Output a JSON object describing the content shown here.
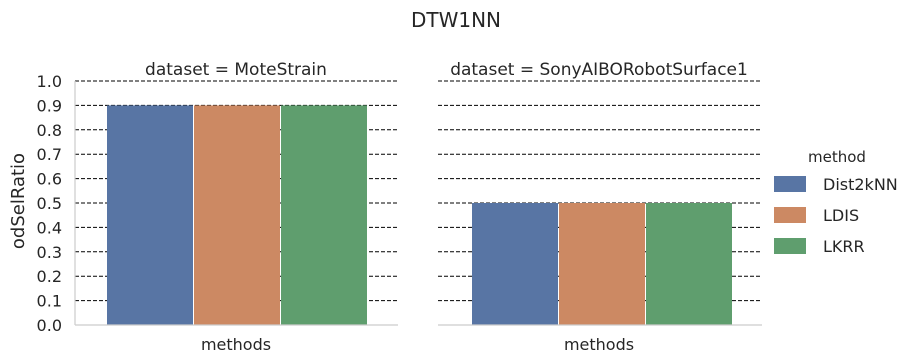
{
  "chart_data": {
    "type": "bar",
    "title": "DTW1NN",
    "ylabel": "odSelRatio",
    "ylim": [
      0,
      1.0
    ],
    "yticks": [
      "0.0",
      "0.1",
      "0.2",
      "0.3",
      "0.4",
      "0.5",
      "0.6",
      "0.7",
      "0.8",
      "0.9",
      "1.0"
    ],
    "grid": "horizontal dashed",
    "legend": {
      "title": "method",
      "placement": "right",
      "entries": [
        "Dist2kNN",
        "LDIS",
        "LKRR"
      ]
    },
    "colors": [
      "#5875a4",
      "#cc8963",
      "#5f9e6e"
    ],
    "categories": [
      "methods"
    ],
    "panels": [
      {
        "title": "dataset = MoteStrain",
        "xlabel": "methods",
        "series": [
          {
            "name": "Dist2kNN",
            "values": [
              0.9
            ]
          },
          {
            "name": "LDIS",
            "values": [
              0.9
            ]
          },
          {
            "name": "LKRR",
            "values": [
              0.9
            ]
          }
        ]
      },
      {
        "title": "dataset = SonyAIBORobotSurface1",
        "xlabel": "methods",
        "series": [
          {
            "name": "Dist2kNN",
            "values": [
              0.5
            ]
          },
          {
            "name": "LDIS",
            "values": [
              0.5
            ]
          },
          {
            "name": "LKRR",
            "values": [
              0.5
            ]
          }
        ]
      }
    ]
  }
}
